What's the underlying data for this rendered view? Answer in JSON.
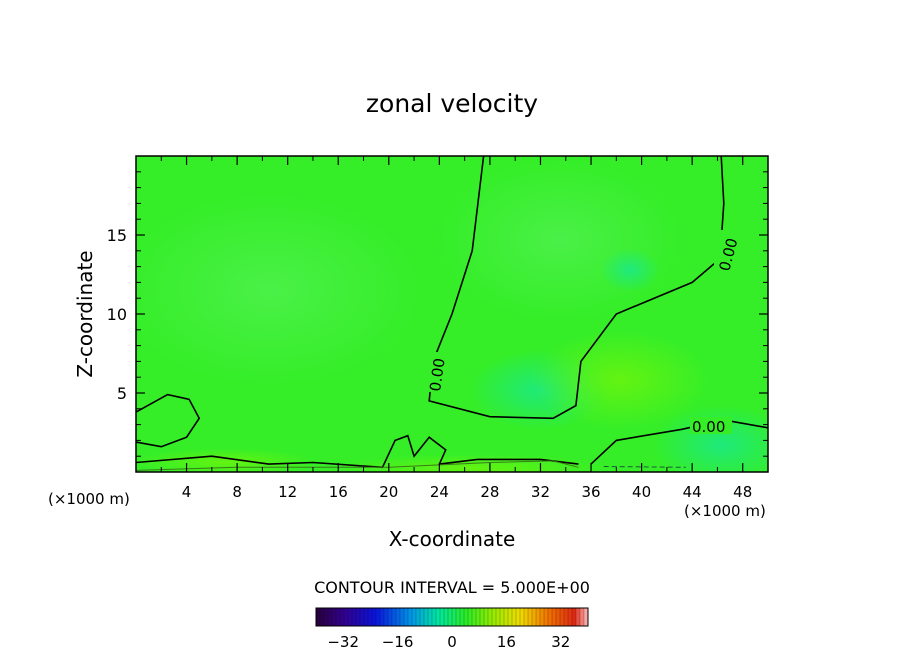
{
  "chart_data": {
    "type": "heatmap",
    "title": "zonal velocity",
    "xlabel": "X-coordinate",
    "ylabel": "Z-coordinate",
    "x_unit_left": "(×1000 m)",
    "x_unit_right": "(×1000 m)",
    "xlim": [
      0,
      50
    ],
    "ylim": [
      0,
      20
    ],
    "xticks": [
      4,
      8,
      12,
      16,
      20,
      24,
      28,
      32,
      36,
      40,
      44,
      48
    ],
    "yticks": [
      5,
      10,
      15
    ],
    "contour_interval_text": "CONTOUR INTERVAL = 5.000E+00",
    "contour_labels": [
      "0.00",
      "0.00",
      "0.00"
    ],
    "colorbar": {
      "range": [
        -40,
        40
      ],
      "ticks": [
        -32,
        -16,
        0,
        16,
        32
      ]
    },
    "field_description_values": {
      "background_value": 0,
      "weak_positive_region_near_surface": 5,
      "weak_negative_regions": -5
    },
    "zero_contours": [
      [
        [
          27.5,
          20
        ],
        [
          26.6,
          14
        ],
        [
          25,
          10
        ],
        [
          23.5,
          7
        ],
        [
          23.2,
          4.5
        ],
        [
          28,
          3.5
        ],
        [
          33,
          3.4
        ],
        [
          34.8,
          4.2
        ],
        [
          35.2,
          7
        ],
        [
          38,
          10
        ],
        [
          44,
          12
        ],
        [
          46.2,
          13.5
        ],
        [
          46.5,
          17
        ],
        [
          46.3,
          20
        ]
      ],
      [
        [
          0,
          3.8
        ],
        [
          2.5,
          4.9
        ],
        [
          4.2,
          4.6
        ],
        [
          5.0,
          3.4
        ],
        [
          4.0,
          2.2
        ],
        [
          2.0,
          1.6
        ],
        [
          0,
          1.9
        ]
      ],
      [
        [
          50,
          2.8
        ],
        [
          46.5,
          3.3
        ],
        [
          43.2,
          2.7
        ],
        [
          38,
          2.0
        ],
        [
          36,
          0.5
        ]
      ],
      [
        [
          0,
          0.6
        ],
        [
          6,
          1.0
        ],
        [
          10.5,
          0.5
        ],
        [
          14,
          0.6
        ],
        [
          19.5,
          0.3
        ],
        [
          20.5,
          2.0
        ],
        [
          21.5,
          2.3
        ],
        [
          22,
          1.0
        ],
        [
          23.2,
          2.2
        ],
        [
          24.5,
          1.4
        ],
        [
          24,
          0.5
        ],
        [
          27,
          0.8
        ],
        [
          32,
          0.8
        ],
        [
          35,
          0.5
        ]
      ]
    ],
    "positive_contour": [
      [
        0,
        0.1
      ],
      [
        8,
        0.3
      ],
      [
        20,
        0.3
      ],
      [
        28,
        0.6
      ],
      [
        33,
        0.7
      ],
      [
        35,
        0.3
      ]
    ],
    "negative_contour": [
      [
        37,
        0.35
      ],
      [
        43.5,
        0.3
      ]
    ]
  }
}
